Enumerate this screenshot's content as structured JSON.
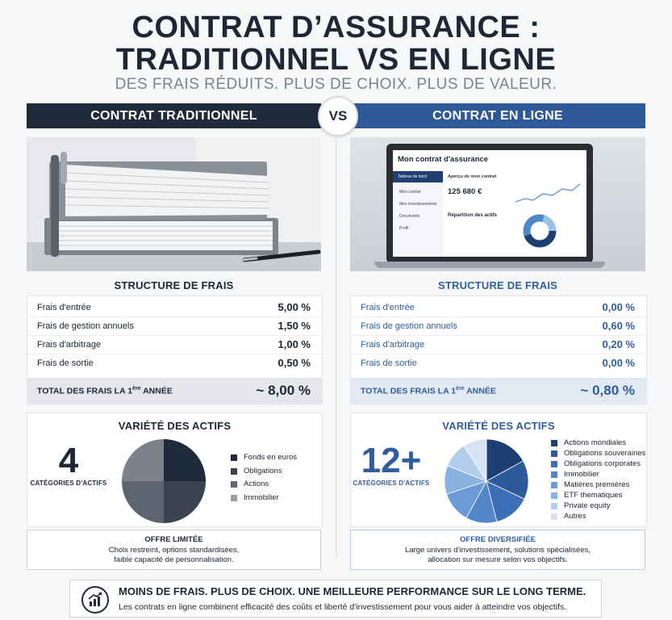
{
  "header": {
    "title_line1": "CONTRAT D’ASSURANCE :",
    "title_line2": "TRADITIONNEL VS EN LIGNE",
    "subtitle": "DES FRAIS RÉDUITS. PLUS DE CHOIX. PLUS DE VALEUR."
  },
  "left": {
    "label": "CONTRAT TRADITIONNEL",
    "fees_title": "STRUCTURE DE FRAIS",
    "fees": [
      {
        "label": "Frais d'entrée",
        "value": "5,00 %"
      },
      {
        "label": "Frais de gestion annuels",
        "value": "1,50 %"
      },
      {
        "label": "Frais d'arbitrage",
        "value": "1,00 %"
      },
      {
        "label": "Frais de sortie",
        "value": "0,50 %"
      }
    ],
    "total_label_pre": "TOTAL DES FRAIS LA 1",
    "total_label_sup": "ère",
    "total_label_post": " ANNÉE",
    "total_value": "~ 8,00 %",
    "assets_title": "VARIÉTÉ DES ACTIFS",
    "asset_count": "4",
    "asset_count_label": "CATÉGORIES D'ACTIFS",
    "legend": [
      "Fonds en euros",
      "Obligations",
      "Actions",
      "Immobilier"
    ],
    "offer_title": "OFFRE LIMITÉE",
    "offer_line1": "Choix restreint, options standardisées,",
    "offer_line2": "faible capacité de personnalisation."
  },
  "vs": "VS",
  "right": {
    "label": "CONTRAT EN LIGNE",
    "fees_title": "STRUCTURE DE FRAIS",
    "fees": [
      {
        "label": "Frais d'entrée",
        "value": "0,00 %"
      },
      {
        "label": "Frais de gestion annuels",
        "value": "0,60 %"
      },
      {
        "label": "Frais d'arbitrage",
        "value": "0,20 %"
      },
      {
        "label": "Frais de sortie",
        "value": "0,00 %"
      }
    ],
    "total_label_pre": "TOTAL DES FRAIS LA 1",
    "total_label_sup": "ère",
    "total_label_post": " ANNÉE",
    "total_value": "~ 0,80 %",
    "assets_title": "VARIÉTÉ DES ACTIFS",
    "asset_count": "12+",
    "asset_count_label": "CATÉGORIES D'ACTIFS",
    "legend": [
      "Actions mondiales",
      "Obligations souveraines",
      "Obligations corporates",
      "Immobilier",
      "Matières premières",
      "ETF thematiques",
      "Private equity",
      "Autres"
    ],
    "offer_title": "OFFRE DIVERSIFIÉE",
    "offer_line1": "Large univers d'investissement, solutions spécialisées,",
    "offer_line2": "allocation sur mesure selon vos objectifs."
  },
  "laptop": {
    "app_title": "Mon contrat d'assurance",
    "menu": [
      "Tableau de bord",
      "Mon contrat",
      "Mes investissements",
      "Documents",
      "Profil"
    ],
    "overview_title": "Aperçu de mon contrat",
    "amount": "125 680 €",
    "allocation_title": "Répartition des actifs"
  },
  "footer": {
    "headline": "MOINS DE FRAIS. PLUS DE CHOIX. UNE MEILLEURE PERFORMANCE SUR LE LONG TERME.",
    "text": "Les contrats en ligne combinent efficacité des coûts et liberté d'investissement pour vous aider à atteindre vos objectifs."
  },
  "colors": {
    "navy": "#1f2a3b",
    "blue": "#2e5a99",
    "left_legend": [
      "#1f2a3b",
      "#3b4250",
      "#5f6570",
      "#9a9ea5"
    ],
    "right_legend": [
      "#1d3f73",
      "#2d5a9a",
      "#3d6fb6",
      "#5286c9",
      "#6a9bd6",
      "#8ab2e0",
      "#b3cdec",
      "#d6e3f4"
    ]
  }
}
